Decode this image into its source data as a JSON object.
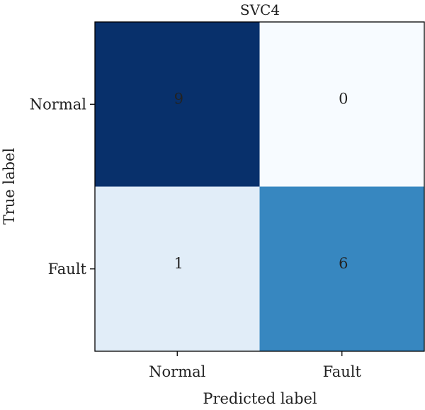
{
  "chart_data": {
    "type": "heatmap",
    "title": "SVC4",
    "xlabel": "Predicted label",
    "ylabel": "True label",
    "x_categories": [
      "Normal",
      "Fault"
    ],
    "y_categories": [
      "Normal",
      "Fault"
    ],
    "values": [
      [
        9,
        0
      ],
      [
        1,
        6
      ]
    ],
    "colormap": [
      "#f7fbff",
      "#deebf7",
      "#c6dbef",
      "#9ecae1",
      "#6baed6",
      "#4292c6",
      "#2171b5",
      "#08519c",
      "#08306b"
    ],
    "value_range": [
      0,
      9
    ],
    "grid": false,
    "legend": "none"
  }
}
